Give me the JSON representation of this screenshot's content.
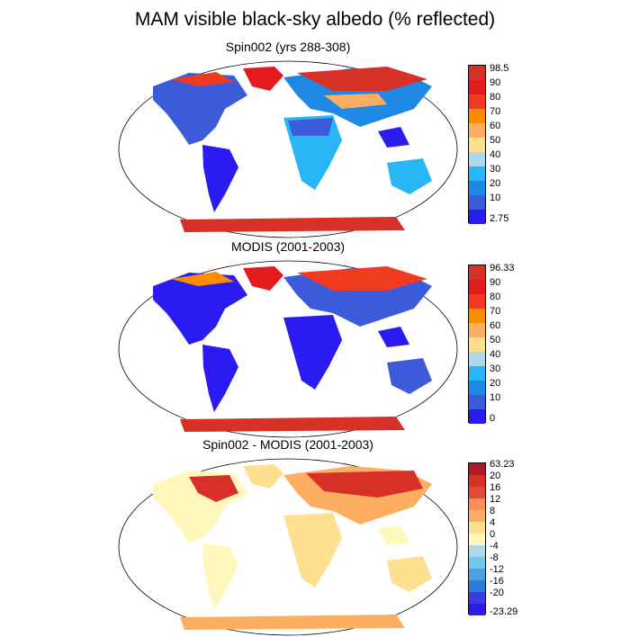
{
  "title": "MAM visible black-sky albedo (% reflected)",
  "panels": [
    {
      "title": "Spin002 (yrs 288-308)",
      "colorbar": {
        "labels": [
          "98.5",
          "90",
          "80",
          "70",
          "60",
          "50",
          "40",
          "30",
          "20",
          "10",
          "2.75"
        ],
        "colors": [
          "#d73027",
          "#e41a1c",
          "#f03b20",
          "#fb8c00",
          "#fdae61",
          "#fee090",
          "#abd9e9",
          "#29b6f6",
          "#1e88e5",
          "#3b5bdb",
          "#2a1cf0"
        ]
      }
    },
    {
      "title": "MODIS (2001-2003)",
      "colorbar": {
        "labels": [
          "96.33",
          "90",
          "80",
          "70",
          "60",
          "50",
          "40",
          "30",
          "20",
          "10",
          "0"
        ],
        "colors": [
          "#d73027",
          "#e41a1c",
          "#f03b20",
          "#fb8c00",
          "#fdae61",
          "#fee090",
          "#abd9e9",
          "#29b6f6",
          "#1e88e5",
          "#3b5bdb",
          "#2a1cf0"
        ]
      }
    },
    {
      "title": "Spin002 - MODIS (2001-2003)",
      "colorbar": {
        "labels": [
          "63.23",
          "20",
          "16",
          "12",
          "8",
          "4",
          "0",
          "-4",
          "-8",
          "-12",
          "-16",
          "-20",
          "-23.29"
        ],
        "colors": [
          "#b2182b",
          "#d73027",
          "#e34a33",
          "#fc8d59",
          "#fdae61",
          "#fee090",
          "#fff7bc",
          "#abd9e9",
          "#74c7ec",
          "#4aa3df",
          "#2b7bd9",
          "#3a3ae0",
          "#2a1cf0"
        ]
      }
    }
  ],
  "colors": {
    "ice": "#d73027",
    "ocean": "#ffffff",
    "coast": "#000000"
  }
}
